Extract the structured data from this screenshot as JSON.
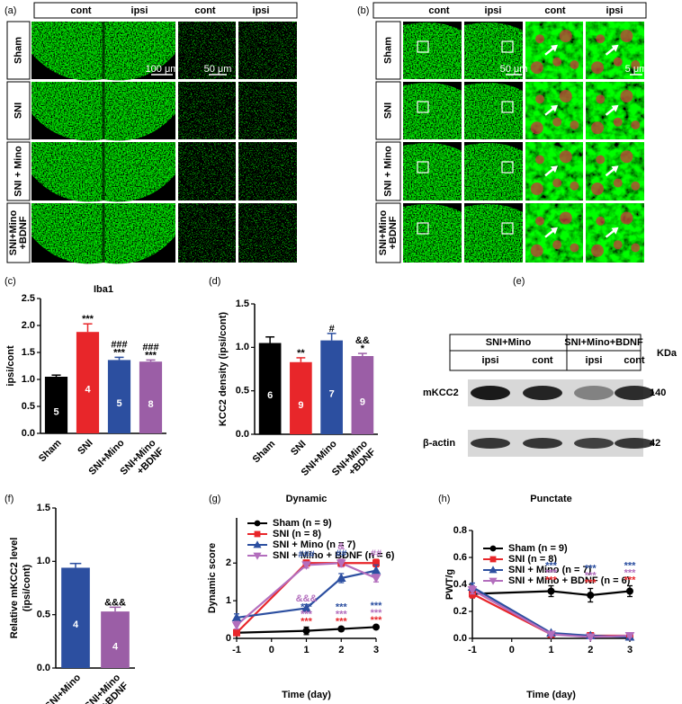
{
  "panel_labels": [
    "(a)",
    "(b)",
    "(c)",
    "(d)",
    "(e)",
    "(f)",
    "(g)",
    "(h)"
  ],
  "image_panels": [
    {
      "headers": [
        "cont",
        "ipsi",
        "cont",
        "ipsi"
      ],
      "rows": [
        [
          "Sham"
        ],
        [
          "SNI"
        ],
        [
          "SNI + Mino"
        ],
        [
          "SNI+Mino",
          "+BDNF"
        ]
      ],
      "scale_bars": [
        "100 μm",
        "50 μm"
      ]
    },
    {
      "headers": [
        "cont",
        "ipsi",
        "cont",
        "ipsi"
      ],
      "rows": [
        [
          "Sham"
        ],
        [
          "SNI"
        ],
        [
          "SNI + Mino"
        ],
        [
          "SNI+Mino",
          "+BDNF"
        ]
      ],
      "scale_bars": [
        "50 μm",
        "5 μm"
      ]
    }
  ],
  "blot": {
    "groups": [
      "SNI+Mino",
      "SNI+Mino+BDNF"
    ],
    "lanes": [
      "ipsi",
      "cont",
      "ipsi",
      "cont"
    ],
    "unit": "KDa",
    "proteins": [
      {
        "name": "mKCC2",
        "kda": 140
      },
      {
        "name": "β-actin",
        "kda": 42
      }
    ]
  },
  "chart_data": [
    {
      "type": "bar",
      "title": "Iba1",
      "ylabel": "ipsi/cont",
      "categories": [
        [
          "Sham"
        ],
        [
          "SNI"
        ],
        [
          "SNI+Mino"
        ],
        [
          "SNI+Mino",
          "+BDNF"
        ]
      ],
      "values": [
        1.05,
        1.88,
        1.36,
        1.33
      ],
      "errors": [
        0.03,
        0.15,
        0.05,
        0.03
      ],
      "n": [
        5,
        4,
        5,
        8
      ],
      "significance": [
        [],
        [
          "***"
        ],
        [
          "***",
          "###"
        ],
        [
          "***",
          "###"
        ]
      ],
      "colors": [
        "#000000",
        "#e8262a",
        "#2c4fa0",
        "#9b5ea6"
      ],
      "ylim": [
        0,
        2.5
      ],
      "yticks": [
        {
          "value": 0,
          "label": "0.0"
        },
        0.5,
        {
          "value": 1,
          "label": "1.0"
        },
        1.5,
        {
          "value": 2,
          "label": "2.0"
        },
        2.5
      ]
    },
    {
      "type": "bar",
      "ylabel": "KCC2 density (ipsi/cont)",
      "categories": [
        [
          "Sham"
        ],
        [
          "SNI"
        ],
        [
          "SNI+Mino"
        ],
        [
          "SNI+Mino",
          "+BDNF"
        ]
      ],
      "values": [
        1.05,
        0.83,
        1.08,
        0.9
      ],
      "errors": [
        0.07,
        0.05,
        0.08,
        0.03
      ],
      "n": [
        6,
        9,
        7,
        9
      ],
      "significance": [
        [],
        [
          "**"
        ],
        [
          "#"
        ],
        [
          "*",
          "&&"
        ]
      ],
      "colors": [
        "#000000",
        "#e8262a",
        "#2c4fa0",
        "#9b5ea6"
      ],
      "ylim": [
        0,
        1.5
      ],
      "yticks": [
        {
          "value": 0,
          "label": "0.0"
        },
        0.5,
        {
          "value": 1,
          "label": "1.0"
        },
        1.5
      ]
    },
    {
      "type": "bar",
      "ylabel": [
        "Relative mKCC2 level",
        "(ipsi/cont)"
      ],
      "categories": [
        [
          "SNI+Mino"
        ],
        [
          "SNI+Mino",
          "+BDNF"
        ]
      ],
      "values": [
        0.94,
        0.53
      ],
      "errors": [
        0.04,
        0.04
      ],
      "n": [
        4,
        4
      ],
      "significance": [
        [],
        [
          "&&&"
        ]
      ],
      "colors": [
        "#2c4fa0",
        "#9b5ea6"
      ],
      "ylim": [
        0,
        1.5
      ],
      "yticks": [
        {
          "value": 0,
          "label": "0.0"
        },
        0.5,
        {
          "value": 1,
          "label": "1.0"
        },
        1.5
      ]
    },
    {
      "type": "line",
      "title": "Dynamic",
      "xlabel": "Time (day)",
      "ylabel": "Dynamic score",
      "legend": "upper left",
      "x": [
        -1,
        1,
        2,
        3
      ],
      "xlim": [
        -1,
        3
      ],
      "xticks": [
        -1,
        0,
        1,
        2,
        3
      ],
      "ylim": [
        0,
        3.2
      ],
      "yticks": [
        0,
        1,
        2
      ],
      "series": [
        {
          "name": "Sham (n = 9)",
          "color": "#000000",
          "marker": "circle",
          "values": [
            0.15,
            0.2,
            0.25,
            0.3
          ],
          "errors": [
            0.05,
            0.1,
            0.05,
            0.03
          ]
        },
        {
          "name": "SNI (n = 8)",
          "color": "#e8262a",
          "marker": "square",
          "values": [
            0.15,
            2.0,
            2.0,
            2.0
          ],
          "errors": [
            0.05,
            0.08,
            0.1,
            0.1
          ]
        },
        {
          "name": "SNI + Mino (n = 7)",
          "color": "#2c4fa0",
          "marker": "triangle-up",
          "values": [
            0.55,
            0.8,
            1.6,
            1.8
          ],
          "errors": [
            0.1,
            0.1,
            0.12,
            0.15
          ]
        },
        {
          "name": "SNI + Mino + BDNF (n = 6)",
          "color": "#b36ebd",
          "marker": "triangle-down",
          "values": [
            0.35,
            1.95,
            2.0,
            1.6
          ],
          "errors": [
            0.1,
            0.08,
            0.1,
            0.1
          ]
        }
      ],
      "annotations": [
        {
          "x": 1,
          "series": 1,
          "text": "###",
          "color": "#2c4fa0"
        },
        {
          "x": 2,
          "series": 1,
          "text": "##",
          "color": "#2c4fa0"
        },
        {
          "x": 2,
          "series": 1,
          "text": "&",
          "color": "#b36ebd"
        },
        {
          "x": 3,
          "series": 1,
          "text": "##",
          "color": "#b36ebd"
        },
        {
          "x": 1,
          "series": 2,
          "text": "&&&",
          "color": "#b36ebd"
        },
        {
          "x": 1,
          "series": 0,
          "text": "***",
          "color": "#e8262a"
        },
        {
          "x": 1,
          "series": 0,
          "text": "***",
          "color": "#b36ebd"
        },
        {
          "x": 1,
          "series": 0,
          "text": "***",
          "color": "#2c4fa0"
        },
        {
          "x": 2,
          "series": 0,
          "text": "***",
          "color": "#e8262a"
        },
        {
          "x": 2,
          "series": 0,
          "text": "***",
          "color": "#b36ebd"
        },
        {
          "x": 2,
          "series": 0,
          "text": "***",
          "color": "#2c4fa0"
        },
        {
          "x": 3,
          "series": 0,
          "text": "***",
          "color": "#e8262a"
        },
        {
          "x": 3,
          "series": 0,
          "text": "***",
          "color": "#b36ebd"
        },
        {
          "x": 3,
          "series": 0,
          "text": "***",
          "color": "#2c4fa0"
        }
      ]
    },
    {
      "type": "line",
      "title": "Punctate",
      "xlabel": "Time (day)",
      "ylabel": "PWT/g",
      "legend": "upper left",
      "x": [
        -1,
        1,
        2,
        3
      ],
      "xlim": [
        -1,
        3
      ],
      "xticks": [
        -1,
        0,
        1,
        2,
        3
      ],
      "ylim": [
        0,
        0.8
      ],
      "yticks": [
        {
          "value": 0,
          "label": "0.0"
        },
        0.2,
        0.4,
        0.6,
        0.8
      ],
      "series": [
        {
          "name": "Sham (n = 9)",
          "color": "#000000",
          "marker": "circle",
          "values": [
            0.33,
            0.35,
            0.32,
            0.35
          ],
          "errors": [
            0.03,
            0.04,
            0.05,
            0.04
          ]
        },
        {
          "name": "SNI (n = 8)",
          "color": "#e8262a",
          "marker": "square",
          "values": [
            0.33,
            0.03,
            0.02,
            0.02
          ],
          "errors": [
            0.03,
            0.01,
            0.01,
            0.01
          ]
        },
        {
          "name": "SNI + Mino (n = 7)",
          "color": "#2c4fa0",
          "marker": "triangle-up",
          "values": [
            0.38,
            0.04,
            0.02,
            0.01
          ],
          "errors": [
            0.03,
            0.01,
            0.01,
            0.01
          ]
        },
        {
          "name": "SNI + Mino + BDNF (n = 6)",
          "color": "#b36ebd",
          "marker": "triangle-down",
          "values": [
            0.36,
            0.03,
            0.01,
            0.02
          ],
          "errors": [
            0.03,
            0.01,
            0.01,
            0.01
          ]
        }
      ],
      "annotations": [
        {
          "x": 1,
          "series": 0,
          "text": "***",
          "color": "#e8262a"
        },
        {
          "x": 1,
          "series": 0,
          "text": "***",
          "color": "#b36ebd"
        },
        {
          "x": 1,
          "series": 0,
          "text": "***",
          "color": "#2c4fa0"
        },
        {
          "x": 2,
          "series": 0,
          "text": "***",
          "color": "#e8262a"
        },
        {
          "x": 2,
          "series": 0,
          "text": "***",
          "color": "#b36ebd"
        },
        {
          "x": 2,
          "series": 0,
          "text": "***",
          "color": "#2c4fa0"
        },
        {
          "x": 3,
          "series": 0,
          "text": "***",
          "color": "#e8262a"
        },
        {
          "x": 3,
          "series": 0,
          "text": "***",
          "color": "#b36ebd"
        },
        {
          "x": 3,
          "series": 0,
          "text": "***",
          "color": "#2c4fa0"
        }
      ]
    }
  ]
}
